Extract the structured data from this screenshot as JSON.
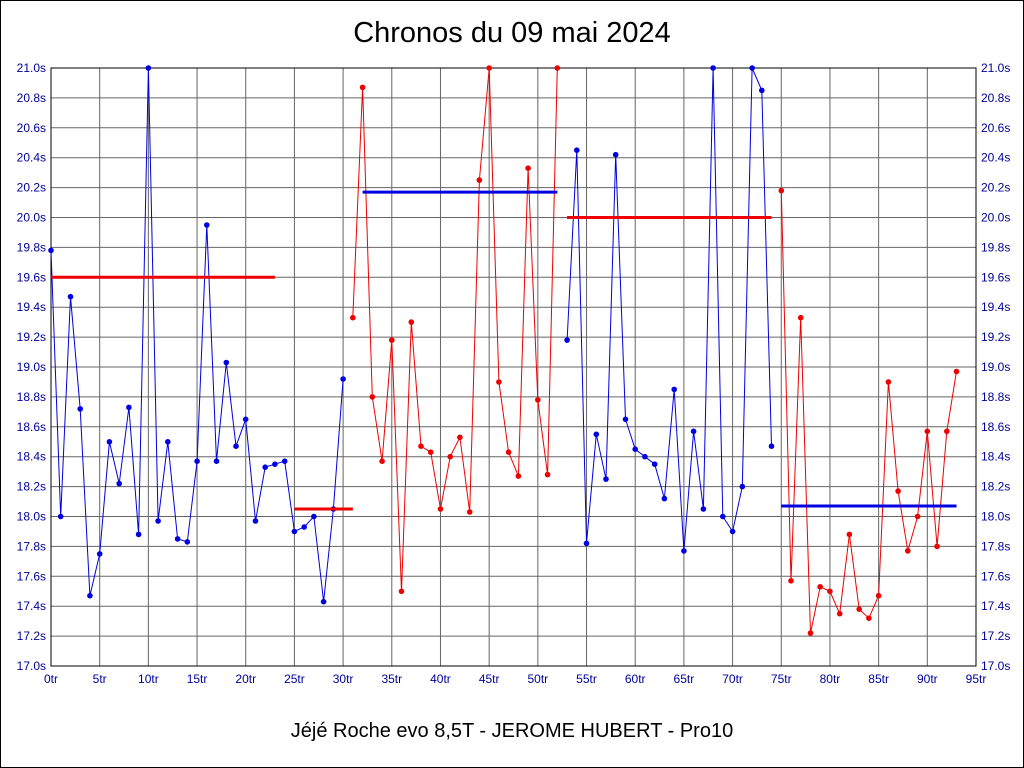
{
  "title": "Chronos du 09 mai 2024",
  "caption": "Jéjé Roche evo 8,5T - JEROME HUBERT - Pro10",
  "chart_data": {
    "type": "line",
    "title": "Chronos du 09 mai 2024",
    "xlabel": "",
    "ylabel": "",
    "xlim": [
      0,
      95
    ],
    "ylim": [
      17.0,
      21.0
    ],
    "grid": true,
    "legend": "none",
    "x_tick_step": 5,
    "y_tick_step": 0.2,
    "x_tick_labels": [
      "0tr",
      "5tr",
      "10tr",
      "15tr",
      "20tr",
      "25tr",
      "30tr",
      "35tr",
      "40tr",
      "45tr",
      "50tr",
      "55tr",
      "60tr",
      "65tr",
      "70tr",
      "75tr",
      "80tr",
      "85tr",
      "90tr",
      "95tr"
    ],
    "y_tick_labels": [
      "17.0s",
      "17.2s",
      "17.4s",
      "17.6s",
      "17.8s",
      "18.0s",
      "18.2s",
      "18.4s",
      "18.6s",
      "18.8s",
      "19.0s",
      "19.2s",
      "19.4s",
      "19.6s",
      "19.8s",
      "20.0s",
      "20.2s",
      "20.4s",
      "20.6s",
      "20.8s",
      "21.0s"
    ],
    "y_axis_right": true,
    "colors": {
      "blue": "#0000e0",
      "red": "#ee0000",
      "grid": "#666666",
      "axis": "#000000",
      "tick_text": "#000099"
    },
    "series": [
      {
        "name": "run-1-blue",
        "color": "blue",
        "points": [
          [
            0,
            19.78
          ],
          [
            1,
            18.0
          ],
          [
            2,
            19.47
          ],
          [
            3,
            18.72
          ],
          [
            4,
            17.47
          ],
          [
            5,
            17.75
          ],
          [
            6,
            18.5
          ],
          [
            7,
            18.22
          ],
          [
            8,
            18.73
          ],
          [
            9,
            17.88
          ],
          [
            10,
            21.0
          ],
          [
            11,
            17.97
          ],
          [
            12,
            18.5
          ],
          [
            13,
            17.85
          ],
          [
            14,
            17.83
          ],
          [
            15,
            18.37
          ],
          [
            16,
            19.95
          ],
          [
            17,
            18.37
          ],
          [
            18,
            19.03
          ],
          [
            19,
            18.47
          ],
          [
            20,
            18.65
          ],
          [
            21,
            17.97
          ],
          [
            22,
            18.33
          ],
          [
            23,
            18.35
          ],
          [
            24,
            18.37
          ],
          [
            25,
            17.9
          ],
          [
            26,
            17.93
          ],
          [
            27,
            18.0
          ],
          [
            28,
            17.43
          ],
          [
            29,
            18.05
          ],
          [
            30,
            18.92
          ]
        ]
      },
      {
        "name": "run-2-red",
        "color": "red",
        "points": [
          [
            31,
            19.33
          ],
          [
            32,
            20.87
          ],
          [
            33,
            18.8
          ],
          [
            34,
            18.37
          ],
          [
            35,
            19.18
          ],
          [
            36,
            17.5
          ],
          [
            37,
            19.3
          ],
          [
            38,
            18.47
          ],
          [
            39,
            18.43
          ],
          [
            40,
            18.05
          ],
          [
            41,
            18.4
          ],
          [
            42,
            18.53
          ],
          [
            43,
            18.03
          ],
          [
            44,
            20.25
          ],
          [
            45,
            21.0
          ],
          [
            46,
            18.9
          ],
          [
            47,
            18.43
          ],
          [
            48,
            18.27
          ],
          [
            49,
            20.33
          ],
          [
            50,
            18.78
          ],
          [
            51,
            18.28
          ],
          [
            52,
            21.0
          ]
        ]
      },
      {
        "name": "run-3-blue",
        "color": "blue",
        "points": [
          [
            53,
            19.18
          ],
          [
            54,
            20.45
          ],
          [
            55,
            17.82
          ],
          [
            56,
            18.55
          ],
          [
            57,
            18.25
          ],
          [
            58,
            20.42
          ],
          [
            59,
            18.65
          ],
          [
            60,
            18.45
          ],
          [
            61,
            18.4
          ],
          [
            62,
            18.35
          ],
          [
            63,
            18.12
          ],
          [
            64,
            18.85
          ],
          [
            65,
            17.77
          ],
          [
            66,
            18.57
          ],
          [
            67,
            18.05
          ],
          [
            68,
            21.0
          ],
          [
            69,
            18.0
          ],
          [
            70,
            17.9
          ],
          [
            71,
            18.2
          ],
          [
            72,
            21.0
          ],
          [
            73,
            20.85
          ],
          [
            74,
            18.47
          ]
        ]
      },
      {
        "name": "run-4-red",
        "color": "red",
        "points": [
          [
            75,
            20.18
          ],
          [
            76,
            17.57
          ],
          [
            77,
            19.33
          ],
          [
            78,
            17.22
          ],
          [
            79,
            17.53
          ],
          [
            80,
            17.5
          ],
          [
            81,
            17.35
          ],
          [
            82,
            17.88
          ],
          [
            83,
            17.38
          ],
          [
            84,
            17.32
          ],
          [
            85,
            17.47
          ],
          [
            86,
            18.9
          ],
          [
            87,
            18.17
          ],
          [
            88,
            17.77
          ],
          [
            89,
            18.0
          ],
          [
            90,
            18.57
          ],
          [
            91,
            17.8
          ],
          [
            92,
            18.57
          ],
          [
            93,
            18.97
          ]
        ]
      }
    ],
    "average_lines": [
      {
        "name": "avg-stint-1",
        "color": "red",
        "value": 19.6,
        "from_lap": 0,
        "to_lap": 23
      },
      {
        "name": "avg-stint-2",
        "color": "red",
        "value": 18.05,
        "from_lap": 25,
        "to_lap": 31
      },
      {
        "name": "avg-stint-3",
        "color": "blue",
        "value": 20.17,
        "from_lap": 32,
        "to_lap": 52
      },
      {
        "name": "avg-stint-4",
        "color": "red",
        "value": 20.0,
        "from_lap": 53,
        "to_lap": 74
      },
      {
        "name": "avg-stint-5",
        "color": "blue",
        "value": 18.07,
        "from_lap": 75,
        "to_lap": 93
      }
    ]
  }
}
